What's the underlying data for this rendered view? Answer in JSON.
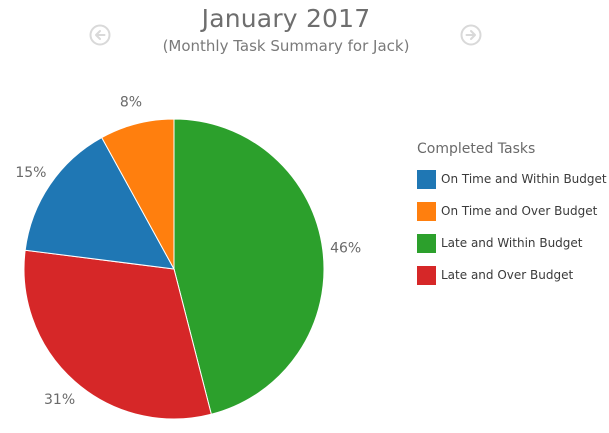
{
  "header": {
    "title": "January 2017",
    "subtitle": "(Monthly Task Summary for Jack)",
    "prev_icon": "arrow-left-circle-icon",
    "next_icon": "arrow-right-circle-icon"
  },
  "legend": {
    "title": "Completed Tasks"
  },
  "chart_data": {
    "type": "pie",
    "title": "January 2017",
    "subtitle": "(Monthly Task Summary for Jack)",
    "legend_title": "Completed Tasks",
    "legend_position": "right",
    "slices": [
      {
        "label": "Late and Within Budget",
        "value": 46,
        "display": "46%",
        "color": "#2ca02c"
      },
      {
        "label": "Late and Over Budget",
        "value": 31,
        "display": "31%",
        "color": "#d62728"
      },
      {
        "label": "On Time and Within Budget",
        "value": 15,
        "display": "15%",
        "color": "#1f77b4"
      },
      {
        "label": "On Time and Over Budget",
        "value": 8,
        "display": "8%",
        "color": "#ff7f0e"
      }
    ],
    "legend_order": [
      "On Time and Within Budget",
      "On Time and Over Budget",
      "Late and Within Budget",
      "Late and Over Budget"
    ]
  }
}
